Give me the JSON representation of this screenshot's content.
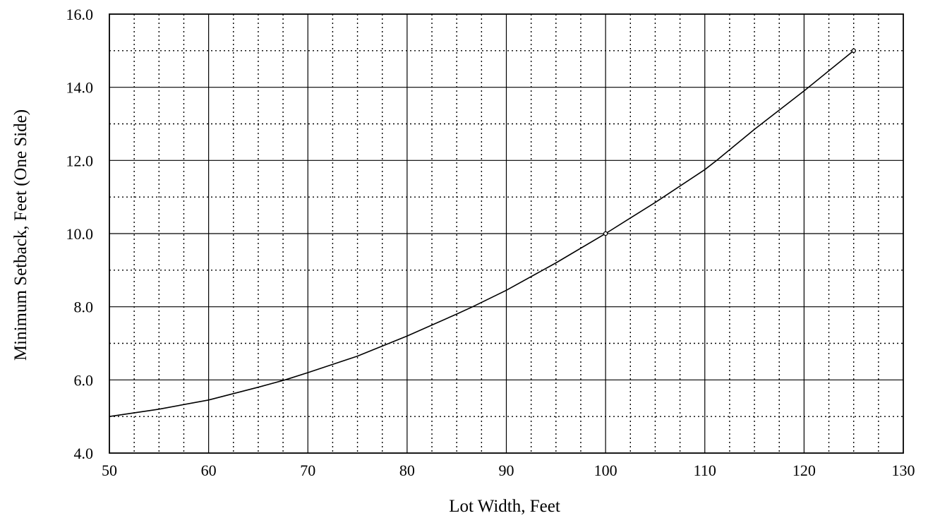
{
  "chart_data": {
    "type": "line",
    "xlabel": "Lot Width, Feet",
    "ylabel": "Minimum Setback, Feet (One Side)",
    "xlim": [
      50,
      130
    ],
    "ylim": [
      4.0,
      16.0
    ],
    "x_ticks": [
      "50",
      "60",
      "70",
      "80",
      "90",
      "100",
      "110",
      "120",
      "130"
    ],
    "y_ticks": [
      "4.0",
      "6.0",
      "8.0",
      "10.0",
      "12.0",
      "14.0",
      "16.0"
    ],
    "grid": true,
    "series": [
      {
        "x": [
          50,
          55,
          60,
          65,
          67.7,
          70,
          75,
          80,
          85,
          86.6,
          90,
          95,
          100,
          105,
          110,
          111.2,
          115,
          120,
          125
        ],
        "y": [
          5.0,
          5.2,
          5.45,
          5.8,
          6.0,
          6.2,
          6.65,
          7.2,
          7.8,
          8.0,
          8.45,
          9.2,
          10.0,
          10.85,
          11.75,
          12.0,
          12.85,
          13.9,
          15.0
        ],
        "color": "#000000"
      }
    ],
    "markers": [
      {
        "x": 100,
        "y": 10.0
      },
      {
        "x": 125,
        "y": 15.0
      }
    ]
  }
}
